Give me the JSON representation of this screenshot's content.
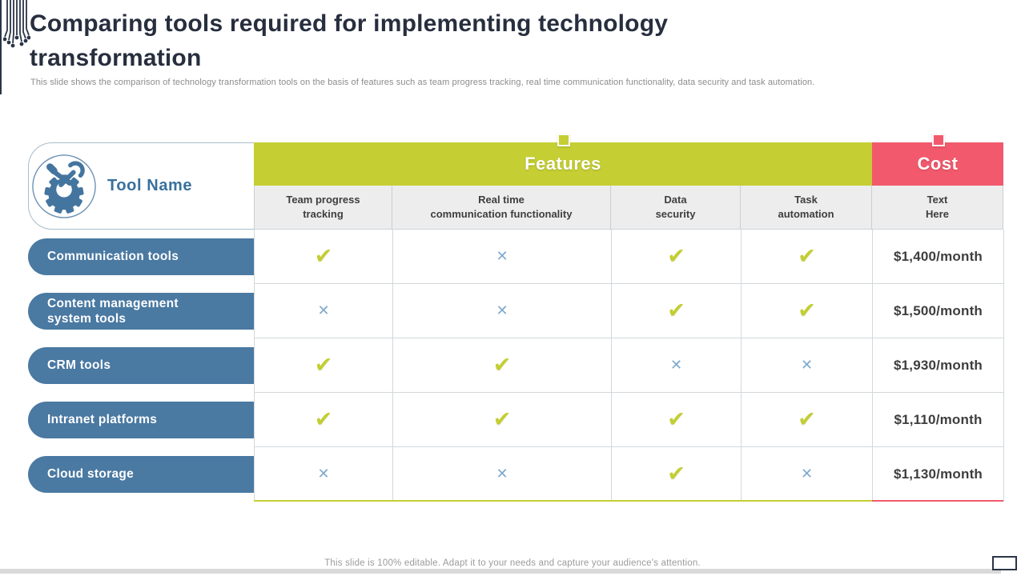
{
  "slide": {
    "title": "Comparing tools required for implementing technology transformation",
    "subtitle": "This slide shows the comparison of technology transformation tools on the basis of features such as team progress tracking, real time communication functionality, data security and task automation.",
    "footer": "This slide is 100% editable. Adapt it to your needs and capture your audience's attention."
  },
  "table": {
    "tool_name_header": "Tool Name",
    "features_header": "Features",
    "cost_header": "Cost",
    "feature_columns": [
      "Team progress\ntracking",
      "Real time\ncommunication functionality",
      "Data\nsecurity",
      "Task\nautomation"
    ],
    "cost_column_label": "Text\nHere",
    "rows": [
      {
        "tool": "Communication tools",
        "features": [
          true,
          false,
          true,
          true
        ],
        "cost": "$1,400/month"
      },
      {
        "tool": "Content management\nsystem tools",
        "features": [
          false,
          false,
          true,
          true
        ],
        "cost": "$1,500/month"
      },
      {
        "tool": "CRM tools",
        "features": [
          true,
          true,
          false,
          false
        ],
        "cost": "$1,930/month"
      },
      {
        "tool": "Intranet platforms",
        "features": [
          true,
          true,
          true,
          true
        ],
        "cost": "$1,110/month"
      },
      {
        "tool": "Cloud storage",
        "features": [
          false,
          false,
          true,
          false
        ],
        "cost": "$1,130/month"
      }
    ]
  },
  "icons": {
    "tool_name": "gear-and-wrench",
    "check_glyph": "✔",
    "cross_glyph": "✕",
    "top_left_decoration": "circuit-traces",
    "bottom_right": "laptop-outline"
  },
  "colors": {
    "accent_green": "#c5cf33",
    "accent_pink": "#f2596c",
    "pill_blue": "#4a79a2",
    "tool_name_blue": "#38709d",
    "check_green": "#c3ce33",
    "cross_blue": "#7fa9cc",
    "title_navy": "#272e3e",
    "subheader_gray": "#ededed",
    "bottom_bar_gray": "#d9d9d9"
  }
}
